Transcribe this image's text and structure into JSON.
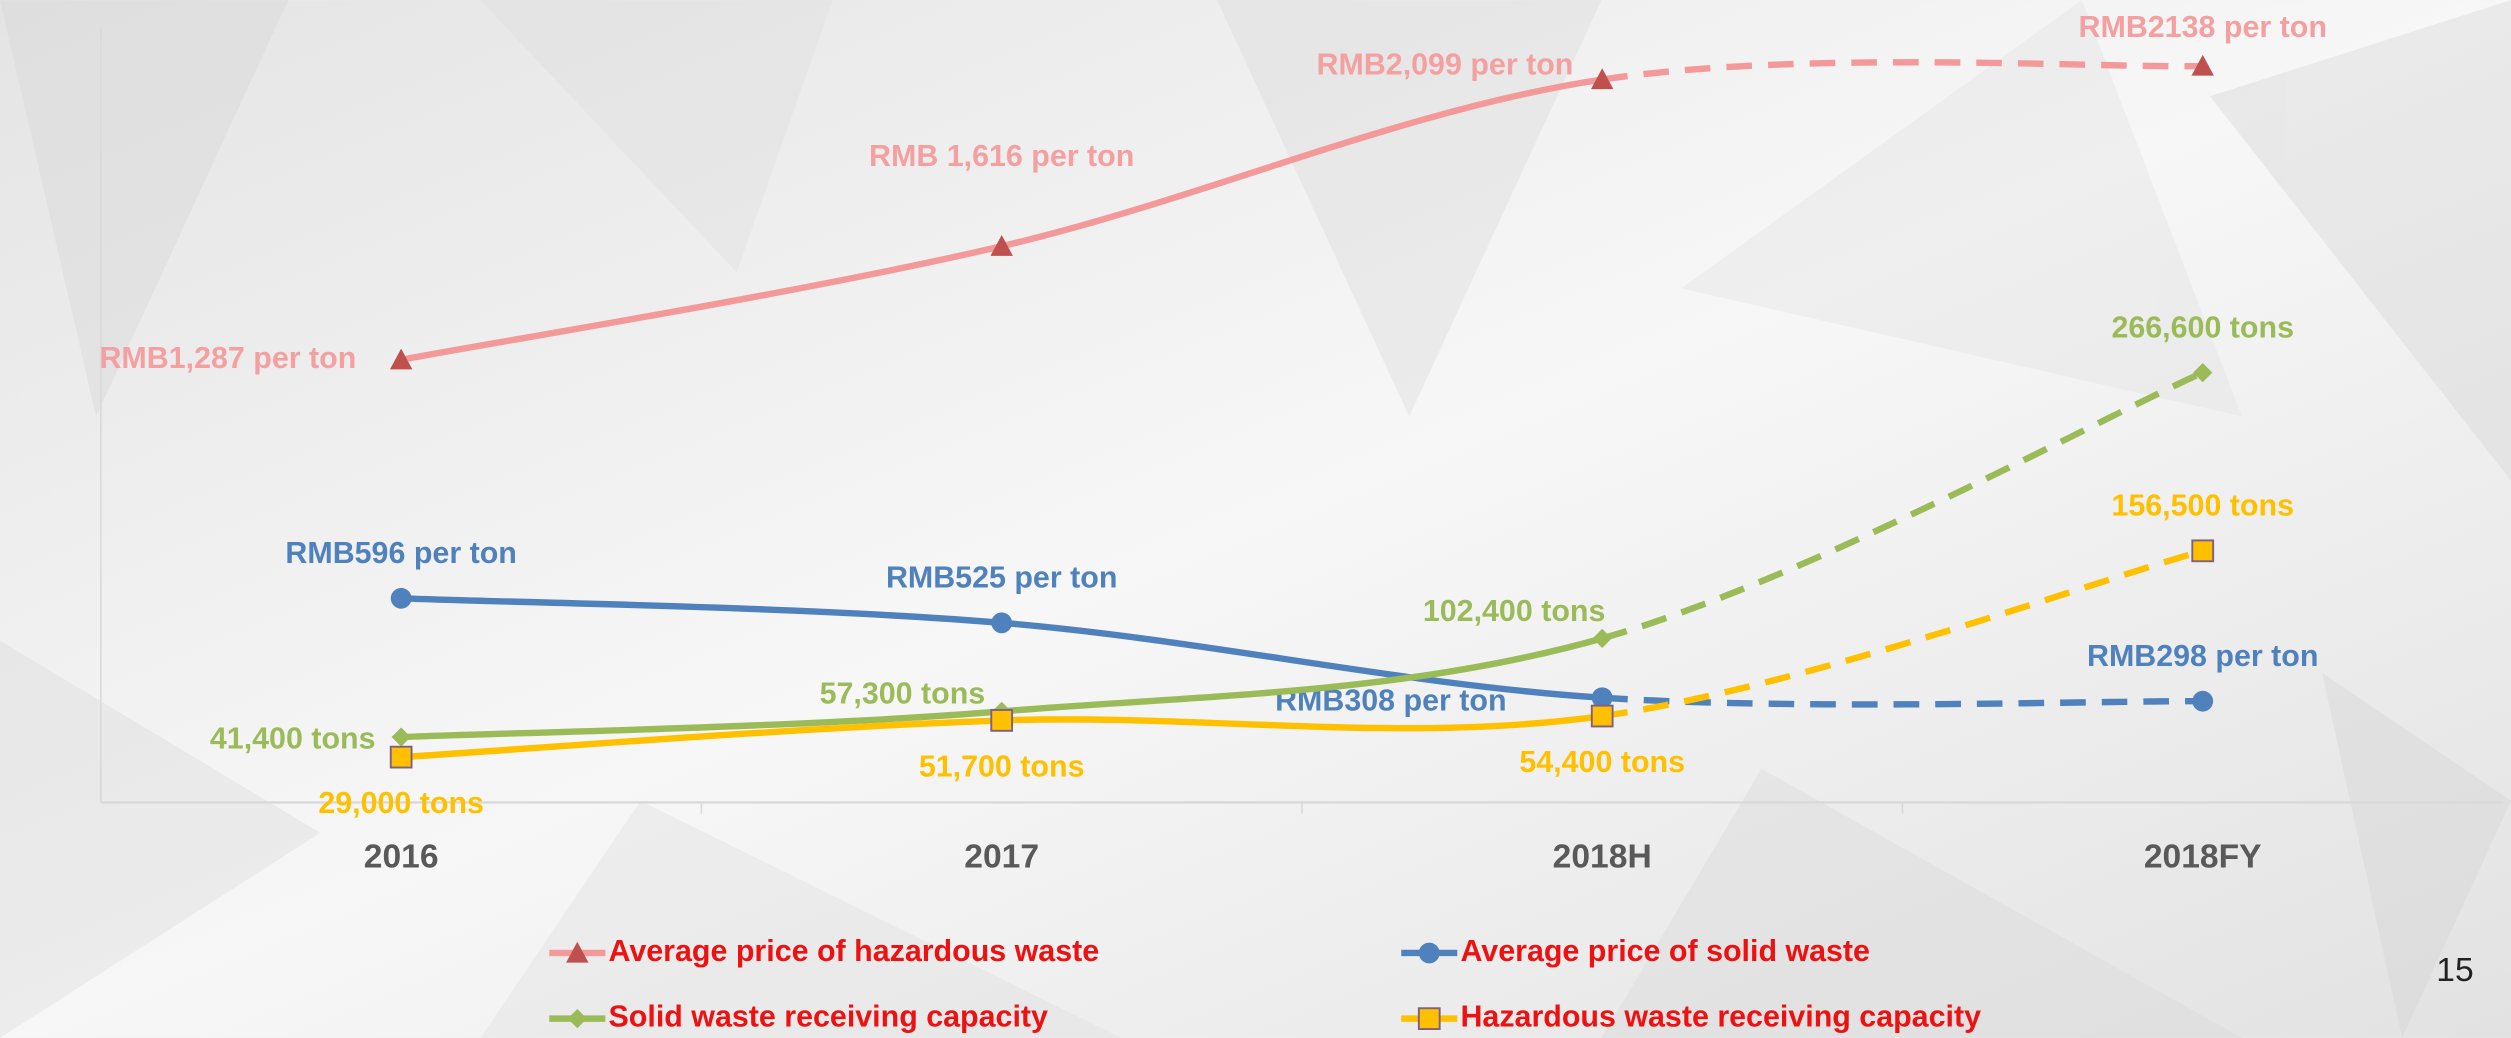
{
  "chart_data": {
    "type": "line",
    "categories": [
      "2016",
      "2017",
      "2018H",
      "2018FY"
    ],
    "ylim": [
      0,
      2250
    ],
    "y2lim": [
      0,
      480000
    ],
    "dashed_from": 2,
    "series": [
      {
        "name": "Average price of hazardous waste",
        "color": "#f4999a",
        "marker": "triangle",
        "marker_color": "#c0504d",
        "label_color": "#f4a0a0",
        "values": [
          1287,
          1616,
          2099,
          2138
        ],
        "value_labels": [
          "RMB1,287 per ton",
          "RMB 1,616 per ton",
          "RMB2,099 per ton",
          "RMB2138 per ton"
        ]
      },
      {
        "name": "Average price of solid waste",
        "color": "#4f81bd",
        "marker": "circle",
        "marker_color": "#4f81bd",
        "label_color": "#4f81bd",
        "values": [
          596,
          525,
          308,
          298
        ],
        "value_labels": [
          "RMB596 per ton",
          "RMB525 per ton",
          "RMB308 per ton",
          "RMB298 per ton"
        ]
      },
      {
        "name": "Solid waste receiving capacity",
        "color": "#9bbb59",
        "marker": "diamond",
        "marker_color": "#9bbb59",
        "label_color": "#9bbb59",
        "axis": "y2",
        "values": [
          41400,
          57300,
          102400,
          266600
        ],
        "value_labels": [
          "41,400 tons",
          "57,300 tons",
          "102,400 tons",
          "266,600 tons"
        ]
      },
      {
        "name": "Hazardous waste receiving capacity",
        "color": "#ffc000",
        "marker": "square",
        "marker_color": "#ffc000",
        "label_color": "#ffc000",
        "axis": "y2",
        "values": [
          29000,
          51700,
          54400,
          156500
        ],
        "value_labels": [
          "29,000 tons",
          "51,700 tons",
          "54,400 tons",
          "156,500 tons"
        ]
      }
    ],
    "legend_color": "#ee1111",
    "page_number": "15"
  }
}
